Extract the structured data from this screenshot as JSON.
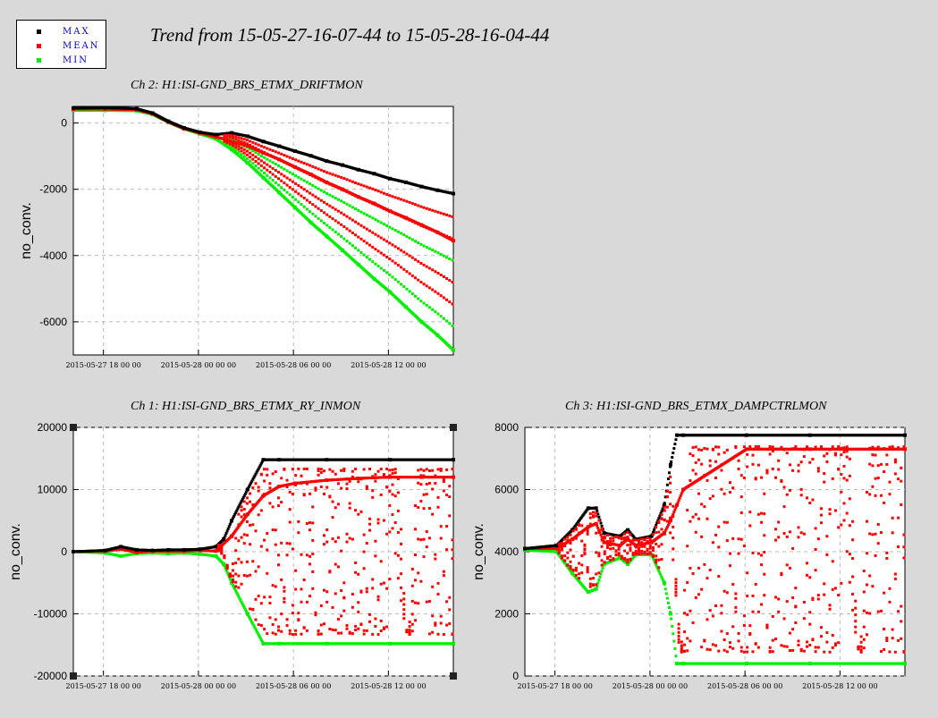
{
  "page": {
    "title": "Trend from 15-05-27-16-07-44 to 15-05-28-16-04-44"
  },
  "legend": {
    "items": [
      {
        "label": "MAX",
        "color": "#000000"
      },
      {
        "label": "MEAN",
        "color": "#ff0000"
      },
      {
        "label": "MIN",
        "color": "#00ee00"
      }
    ]
  },
  "chart_data": [
    {
      "type": "scatter",
      "title": "Ch 2: H1:ISI-GND_BRS_ETMX_DRIFTMON",
      "ylabel": "no_conv.",
      "ylim": [
        -7000,
        500
      ],
      "xlim_hours": [
        0,
        24
      ],
      "x_tick_labels": [
        "2015-05-27 18 00 00",
        "2015-05-28 00 00 00",
        "2015-05-28 06 00 00",
        "2015-05-28 12 00 00"
      ],
      "x_tick_hours": [
        1.9,
        7.9,
        13.9,
        19.9
      ],
      "y_ticks": [
        0,
        -2000,
        -4000,
        -6000
      ],
      "y_tick_labels": [
        "0",
        "-2000",
        "-4000",
        "-6000"
      ],
      "series": [
        {
          "name": "MAX",
          "color": "#000000",
          "x": [
            0,
            2,
            4,
            5,
            6,
            7,
            8,
            9,
            10,
            11,
            12,
            13,
            14,
            15,
            16,
            17,
            18,
            19,
            20,
            21,
            22,
            23,
            24
          ],
          "y": [
            450,
            460,
            430,
            300,
            50,
            -150,
            -280,
            -350,
            -300,
            -400,
            -560,
            -700,
            -850,
            -990,
            -1150,
            -1270,
            -1410,
            -1530,
            -1680,
            -1790,
            -1920,
            -2030,
            -2130
          ]
        },
        {
          "name": "MEAN",
          "color": "#ff0000",
          "x": [
            0,
            2,
            4,
            5,
            6,
            7,
            8,
            9,
            10,
            11,
            12,
            13,
            14,
            15,
            16,
            17,
            18,
            19,
            20,
            21,
            22,
            23,
            24
          ],
          "y": [
            420,
            420,
            400,
            280,
            30,
            -170,
            -300,
            -420,
            -550,
            -700,
            -900,
            -1100,
            -1330,
            -1550,
            -1790,
            -2000,
            -2230,
            -2430,
            -2660,
            -2860,
            -3080,
            -3300,
            -3550
          ]
        },
        {
          "name": "MIN",
          "color": "#00ee00",
          "x": [
            0,
            2,
            4,
            5,
            6,
            7,
            8,
            9,
            10,
            11,
            12,
            13,
            14,
            15,
            16,
            17,
            18,
            19,
            20,
            21,
            22,
            23,
            24
          ],
          "y": [
            380,
            380,
            370,
            260,
            20,
            -180,
            -330,
            -480,
            -800,
            -1200,
            -1650,
            -2100,
            -2550,
            -3000,
            -3420,
            -3840,
            -4270,
            -4700,
            -5100,
            -5550,
            -6000,
            -6400,
            -6850
          ]
        }
      ]
    },
    {
      "type": "scatter",
      "title": "Ch 1: H1:ISI-GND_BRS_ETMX_RY_INMON",
      "ylabel": "no_conv.",
      "ylim": [
        -20000,
        20000
      ],
      "xlim_hours": [
        0,
        24
      ],
      "x_tick_labels": [
        "2015-05-27 18 00 00",
        "2015-05-28 00 00 00",
        "2015-05-28 06 00 00",
        "2015-05-28 12 00 00"
      ],
      "x_tick_hours": [
        1.9,
        7.9,
        13.9,
        19.9
      ],
      "y_ticks": [
        20000,
        10000,
        0,
        -10000,
        -20000
      ],
      "y_tick_labels": [
        "20000",
        "10000",
        "0",
        "-10000",
        "-20000"
      ],
      "series": [
        {
          "name": "MAX",
          "color": "#000000",
          "x": [
            0,
            2,
            3,
            4,
            5,
            6,
            7,
            8,
            9,
            9.5,
            10,
            11,
            12,
            13,
            16,
            20,
            24
          ],
          "y": [
            0,
            200,
            800,
            300,
            200,
            300,
            300,
            400,
            800,
            2000,
            5000,
            10000,
            14800,
            14800,
            14800,
            14800,
            14800
          ]
        },
        {
          "name": "MEAN",
          "color": "#ff0000",
          "x": [
            0,
            2,
            3,
            4,
            5,
            6,
            7,
            8,
            9,
            10,
            11,
            12,
            13,
            14,
            16,
            18,
            20,
            22,
            24
          ],
          "y": [
            0,
            100,
            400,
            -100,
            100,
            100,
            100,
            200,
            100,
            2500,
            6000,
            9000,
            10500,
            11000,
            11500,
            11800,
            12000,
            12000,
            12000
          ]
        },
        {
          "name": "MIN",
          "color": "#00ee00",
          "x": [
            0,
            2,
            3,
            4,
            5,
            6,
            7,
            8,
            9,
            9.5,
            10,
            11,
            12,
            13,
            16,
            20,
            24
          ],
          "y": [
            0,
            -200,
            -700,
            -300,
            -200,
            -300,
            -200,
            -400,
            -700,
            -2000,
            -5000,
            -10000,
            -14800,
            -14800,
            -14800,
            -14800,
            -14800
          ]
        }
      ]
    },
    {
      "type": "scatter",
      "title": "Ch 3: H1:ISI-GND_BRS_ETMX_DAMPCTRLMON",
      "ylabel": "no_conv.",
      "ylim": [
        0,
        8000
      ],
      "xlim_hours": [
        0,
        24
      ],
      "x_tick_labels": [
        "2015-05-27 18 00 00",
        "2015-05-28 00 00 00",
        "2015-05-28 06 00 00",
        "2015-05-28 12 00 00"
      ],
      "x_tick_hours": [
        1.9,
        7.9,
        13.9,
        19.9
      ],
      "y_ticks": [
        8000,
        6000,
        4000,
        2000,
        0
      ],
      "y_tick_labels": [
        "8000",
        "6000",
        "4000",
        "2000",
        "0"
      ],
      "series": [
        {
          "name": "MAX",
          "color": "#000000",
          "x": [
            0,
            2,
            3,
            4,
            4.5,
            5,
            6,
            6.5,
            7,
            8,
            8.8,
            9.2,
            9.6,
            10,
            14,
            18,
            24
          ],
          "y": [
            4100,
            4200,
            4700,
            5400,
            5400,
            4600,
            4500,
            4700,
            4400,
            4500,
            5500,
            6800,
            7750,
            7750,
            7750,
            7750,
            7750
          ]
        },
        {
          "name": "MEAN",
          "color": "#ff0000",
          "x": [
            0,
            2,
            3,
            4,
            4.5,
            5,
            6,
            6.5,
            7,
            8,
            8.8,
            9.2,
            9.6,
            10,
            14,
            18,
            24
          ],
          "y": [
            4100,
            4100,
            4400,
            4800,
            4900,
            4300,
            4200,
            4400,
            4200,
            4300,
            4600,
            5000,
            5500,
            6000,
            7300,
            7300,
            7300
          ]
        },
        {
          "name": "MIN",
          "color": "#00ee00",
          "x": [
            0,
            2,
            3,
            4,
            4.5,
            5,
            6,
            6.5,
            7,
            8,
            8.8,
            9.2,
            9.6,
            10,
            14,
            18,
            24
          ],
          "y": [
            4050,
            4000,
            3300,
            2700,
            2800,
            3600,
            3800,
            3600,
            3900,
            3900,
            3000,
            2000,
            400,
            400,
            400,
            400,
            400
          ]
        }
      ]
    }
  ]
}
